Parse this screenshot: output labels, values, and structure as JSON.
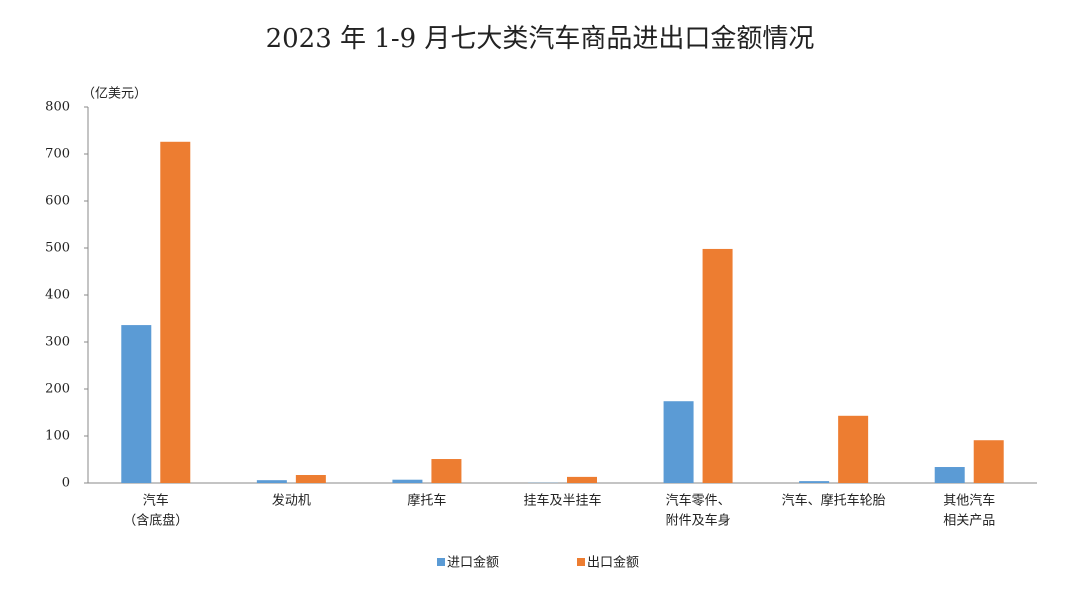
{
  "chart_data": {
    "type": "bar",
    "title": "2023 年 1-9 月七大类汽车商品进出口金额情况",
    "y_label": "（亿美元）",
    "categories": [
      [
        "汽车",
        "（含底盘）"
      ],
      [
        "发动机"
      ],
      [
        "摩托车"
      ],
      [
        "挂车及半挂车"
      ],
      [
        "汽车零件、",
        "附件及车身"
      ],
      [
        "汽车、摩托车轮胎"
      ],
      [
        "其他汽车",
        "相关产品"
      ]
    ],
    "series": [
      {
        "name": "进口金额",
        "color": "#5b9bd5",
        "values": [
          336,
          6,
          7,
          0.5,
          174,
          4,
          34
        ]
      },
      {
        "name": "出口金额",
        "color": "#ed7d31",
        "values": [
          726,
          17,
          51,
          13,
          498,
          143,
          91
        ]
      }
    ],
    "ylim": [
      0,
      800
    ],
    "yticks": [
      0,
      100,
      200,
      300,
      400,
      500,
      600,
      700,
      800
    ],
    "grid": false,
    "legend": "bottom"
  }
}
